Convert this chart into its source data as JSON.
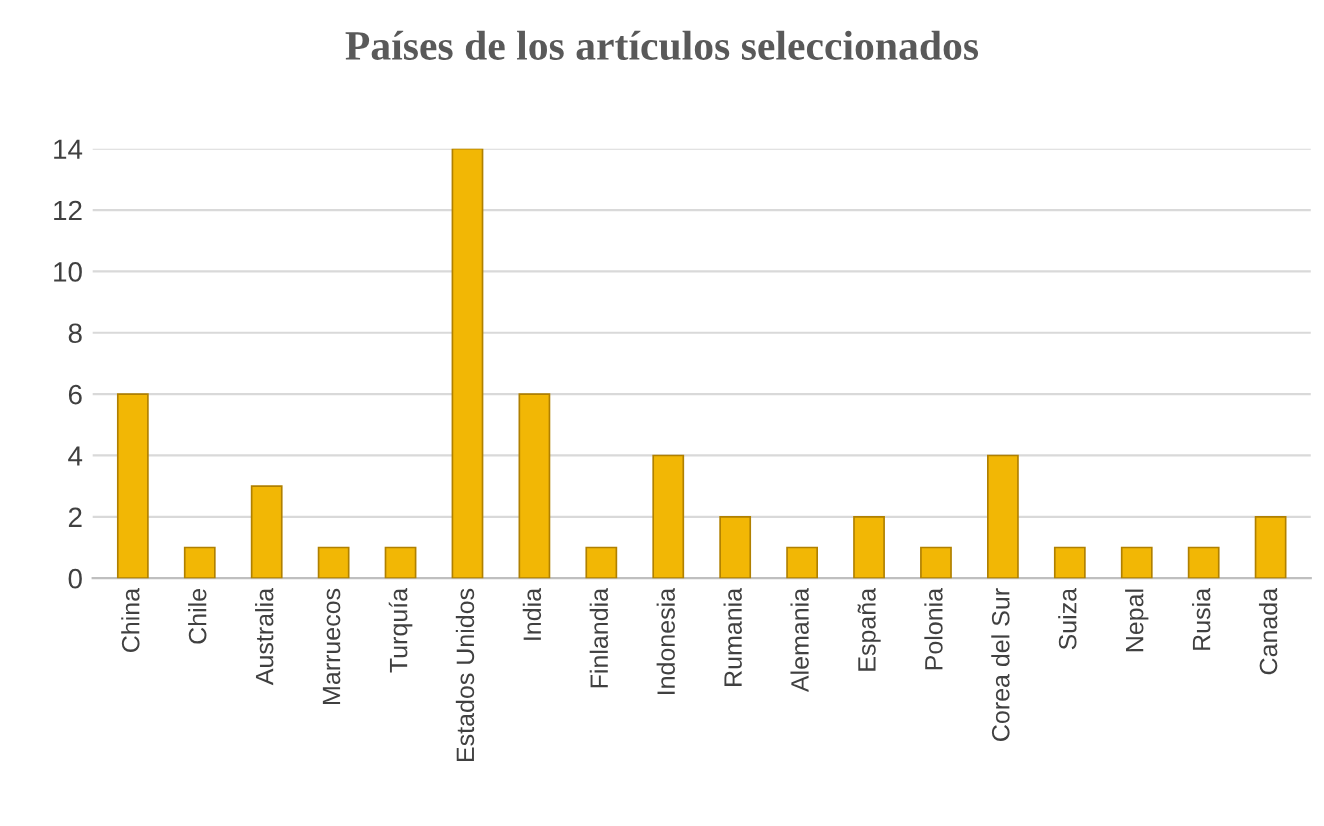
{
  "chart_data": {
    "type": "bar",
    "title": "Países de los artículos seleccionados",
    "categories": [
      "China",
      "Chile",
      "Australia",
      "Marruecos",
      "Turquía",
      "Estados Unidos",
      "India",
      "Finlandia",
      "Indonesia",
      "Rumania",
      "Alemania",
      "España",
      "Polonia",
      "Corea del Sur",
      "Suiza",
      "Nepal",
      "Rusia",
      "Canada"
    ],
    "values": [
      6,
      1,
      3,
      1,
      1,
      14,
      6,
      1,
      4,
      2,
      1,
      2,
      1,
      4,
      1,
      1,
      1,
      2
    ],
    "color": "#f2b705",
    "ylim": [
      0,
      14
    ],
    "yticks": [
      0,
      2,
      4,
      6,
      8,
      10,
      12,
      14
    ],
    "grid": "y"
  }
}
